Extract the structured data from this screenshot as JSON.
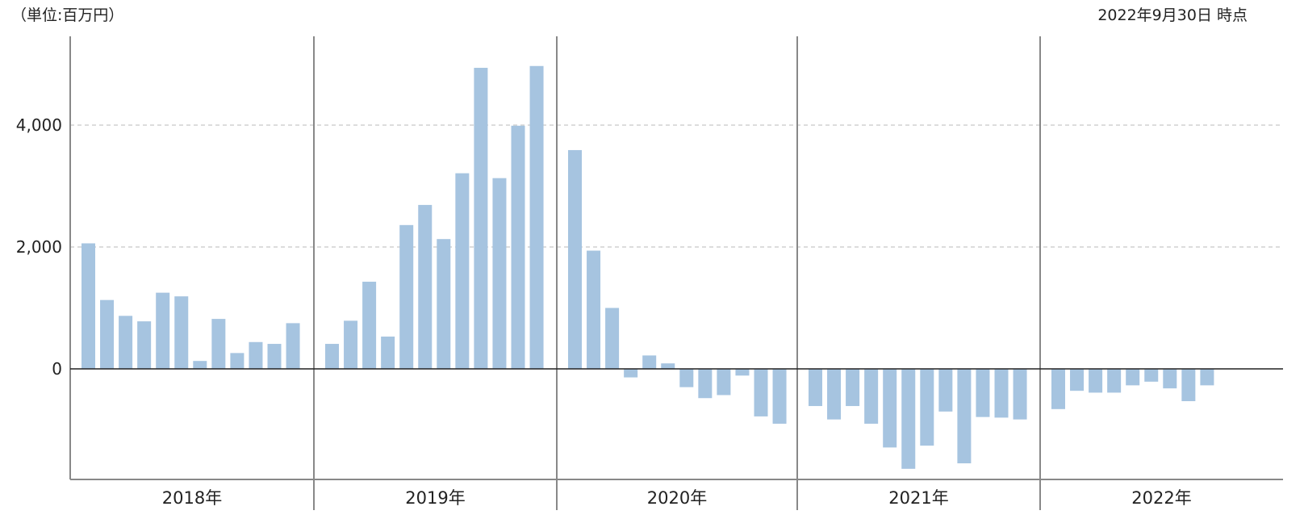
{
  "header": {
    "unit_label": "（単位:百万円）",
    "as_of": "2022年9月30日 時点"
  },
  "chart_data": {
    "type": "bar",
    "title": "",
    "xlabel": "",
    "ylabel": "",
    "unit": "百万円",
    "ylim": [
      -1800,
      5400
    ],
    "yticks": [
      0,
      2000,
      4000
    ],
    "ytick_labels": [
      "0",
      "2,000",
      "4,000"
    ],
    "grid": "horizontal dashed",
    "colors": {
      "bar": "#a6c4e0",
      "axis": "#222222",
      "separator": "#888888",
      "grid": "#c8c8c8"
    },
    "groups": [
      {
        "label": "2018年",
        "values": [
          2060,
          1130,
          870,
          780,
          1250,
          1190,
          130,
          820,
          260,
          440,
          410,
          750
        ]
      },
      {
        "label": "2019年",
        "values": [
          410,
          790,
          1430,
          530,
          2360,
          2690,
          2130,
          3210,
          4940,
          3130,
          3990,
          4970
        ]
      },
      {
        "label": "2020年",
        "values": [
          3590,
          1940,
          1000,
          -140,
          220,
          90,
          -300,
          -480,
          -430,
          -110,
          -780,
          -900
        ]
      },
      {
        "label": "2021年",
        "values": [
          -610,
          -830,
          -610,
          -900,
          -1290,
          -1640,
          -1260,
          -700,
          -1550,
          -790,
          -800,
          -830
        ]
      },
      {
        "label": "2022年",
        "values": [
          -660,
          -360,
          -390,
          -390,
          -270,
          -210,
          -320,
          -530,
          -270
        ]
      }
    ]
  }
}
